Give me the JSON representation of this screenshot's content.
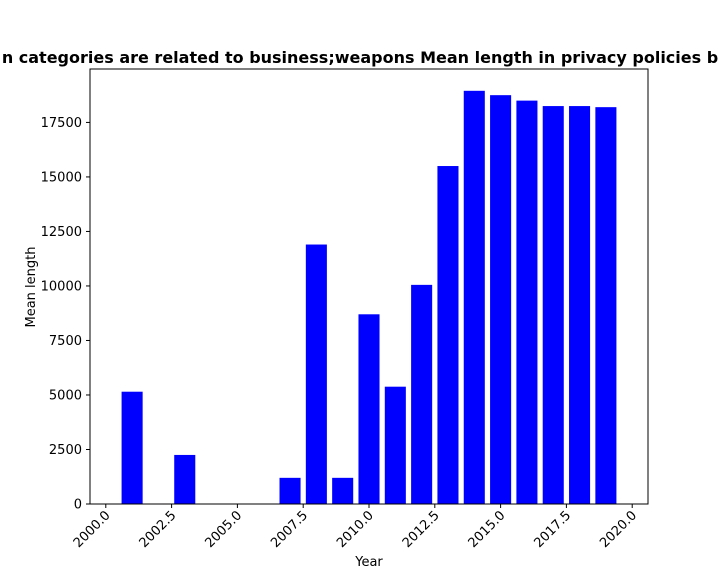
{
  "chart_data": {
    "type": "bar",
    "title": "n categories are related to business;weapons Mean length in privacy policies b",
    "xlabel": "Year",
    "ylabel": "Mean length",
    "x": [
      2001,
      2003,
      2007,
      2008,
      2009,
      2010,
      2011,
      2012,
      2013,
      2014,
      2015,
      2016,
      2017,
      2018,
      2019
    ],
    "values": [
      5150,
      2250,
      1200,
      11900,
      1200,
      8700,
      5380,
      10050,
      15500,
      18950,
      18750,
      18500,
      18250,
      18250,
      18200
    ],
    "xlim": [
      1999.4,
      2020.6
    ],
    "ylim": [
      0,
      19950
    ],
    "xticks": [
      "2000.0",
      "2002.5",
      "2005.0",
      "2007.5",
      "2010.0",
      "2012.5",
      "2015.0",
      "2017.5",
      "2020.0"
    ],
    "yticks": [
      "0",
      "2500",
      "5000",
      "7500",
      "10000",
      "12500",
      "15000",
      "17500"
    ],
    "bar_color": "#0000ff",
    "grid": false,
    "legend": "none"
  }
}
